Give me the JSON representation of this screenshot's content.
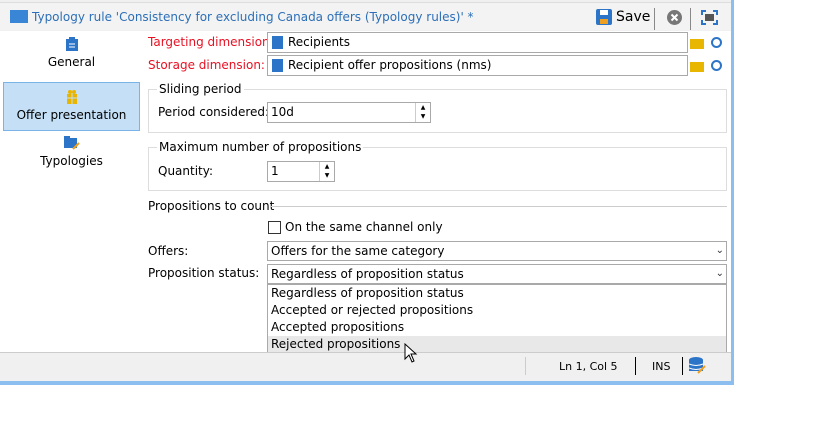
{
  "window": {
    "title": "Typology rule 'Consistency for excluding Canada offers (Typology rules)' *",
    "save_label": "Save"
  },
  "sidebar": {
    "items": [
      {
        "label": "General",
        "icon": "clipboard-icon"
      },
      {
        "label": "Offer presentation",
        "icon": "gift-icon",
        "selected": true
      },
      {
        "label": "Typologies",
        "icon": "folder-rule-icon"
      }
    ]
  },
  "form": {
    "targeting_label": "Targeting dimension:",
    "targeting_value": "Recipients",
    "storage_label": "Storage dimension:",
    "storage_value": "Recipient offer propositions (nms)",
    "sliding_title": "Sliding period",
    "period_label": "Period considered:",
    "period_value": "10d",
    "max_title": "Maximum number of propositions",
    "quantity_label": "Quantity:",
    "quantity_value": "1",
    "count_title": "Propositions to count",
    "same_channel_label": "On the same channel only",
    "same_channel_checked": false,
    "offers_label": "Offers:",
    "offers_value": "Offers for the same category",
    "status_label": "Proposition status:",
    "status_value": "Regardless of proposition status",
    "status_options": [
      "Regardless of proposition status",
      "Accepted or rejected propositions",
      "Accepted propositions",
      "Rejected propositions"
    ]
  },
  "statusbar": {
    "position": "Ln 1, Col 5",
    "mode": "INS"
  },
  "colors": {
    "accent": "#2c74c8",
    "required": "#e81123",
    "selected_bg": "#c4dff6",
    "window_border": "#8cbff0"
  }
}
